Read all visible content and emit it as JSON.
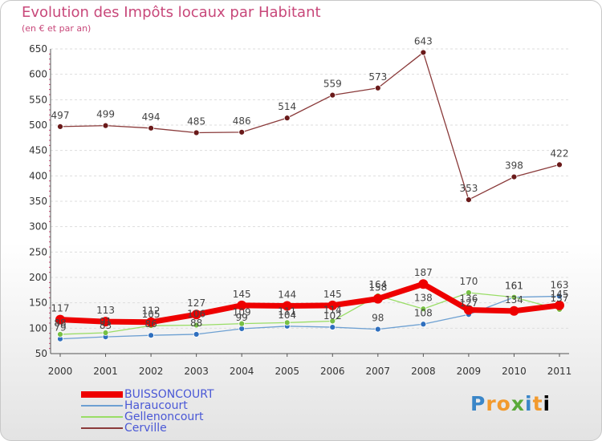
{
  "title": "Evolution des Impôts locaux par Habitant",
  "subtitle": "(en € et par an)",
  "logo": "Proxiti",
  "chart_data": {
    "type": "line",
    "title": "Evolution des Impôts locaux par Habitant",
    "subtitle": "(en € et par an)",
    "xlabel": "",
    "ylabel": "",
    "categories": [
      "2000",
      "2001",
      "2002",
      "2003",
      "2004",
      "2005",
      "2006",
      "2007",
      "2008",
      "2009",
      "2010",
      "2011"
    ],
    "ylim": [
      50,
      650
    ],
    "yticks": [
      50,
      100,
      150,
      200,
      250,
      300,
      350,
      400,
      450,
      500,
      550,
      600,
      650
    ],
    "grid": true,
    "legend_position": "bottom-left",
    "series": [
      {
        "name": "BUISSONCOURT",
        "color": "#ee0000",
        "marker": "#ee0000",
        "width": 7,
        "values": [
          117,
          113,
          112,
          127,
          145,
          144,
          145,
          158,
          187,
          136,
          134,
          145
        ],
        "labels": [
          "117",
          "113",
          "112",
          "127",
          "145",
          "144",
          "145",
          "158",
          "187",
          "136",
          "134",
          "145"
        ]
      },
      {
        "name": "Haraucourt",
        "color": "#6da0d2",
        "marker": "#2f6fbe",
        "width": 1.3,
        "values": [
          79,
          83,
          86,
          88,
          99,
          104,
          102,
          98,
          108,
          127,
          161,
          163
        ],
        "labels": [
          "79",
          "83",
          "86",
          "88",
          "99",
          "104",
          "102",
          "98",
          "108",
          "127",
          "161",
          "163"
        ]
      },
      {
        "name": "Gellenoncourt",
        "color": "#99dd66",
        "marker": "#77c044",
        "width": 1.3,
        "values": [
          88,
          91,
          105,
          106,
          109,
          111,
          114,
          164,
          138,
          170,
          161,
          137
        ],
        "labels": [
          "88",
          "91",
          "105",
          "106",
          "109",
          "111",
          "114",
          "164",
          "138",
          "170",
          "161",
          "137"
        ]
      },
      {
        "name": "Cerville",
        "color": "#8a3a3a",
        "marker": "#6a1a1a",
        "width": 1.3,
        "values": [
          497,
          499,
          494,
          485,
          486,
          514,
          559,
          573,
          643,
          353,
          398,
          422
        ],
        "labels": [
          "497",
          "499",
          "494",
          "485",
          "486",
          "514",
          "559",
          "573",
          "643",
          "353",
          "398",
          "422"
        ]
      }
    ]
  }
}
